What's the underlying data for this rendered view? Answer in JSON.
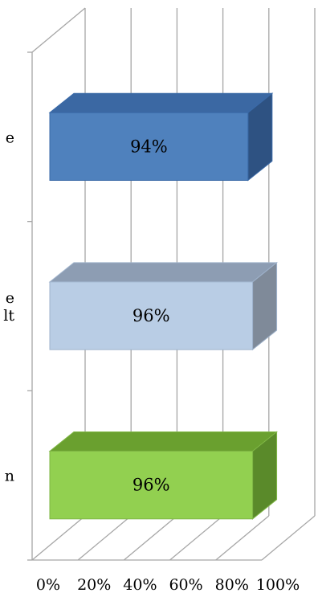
{
  "chart_data": {
    "type": "bar",
    "orientation": "horizontal",
    "style": "3d",
    "title": "",
    "xlabel": "",
    "ylabel": "",
    "xlim": [
      0,
      100
    ],
    "x_ticks": [
      "0%",
      "20%",
      "40%",
      "60%",
      "80%",
      "100%"
    ],
    "categories": [
      {
        "label_lines": [
          "e"
        ]
      },
      {
        "label_lines": [
          "e",
          "lt"
        ]
      },
      {
        "label_lines": [
          "n"
        ]
      }
    ],
    "values": [
      94,
      96,
      96
    ],
    "value_labels": [
      "94%",
      "96%",
      "96%"
    ],
    "bar_colors": [
      {
        "front": "#4f81bd",
        "top": "#3b68a3",
        "side": "#2e5282",
        "border": "#3a6aa8"
      },
      {
        "front": "#b9cde5",
        "top": "#8d9db3",
        "side": "#7f8a99",
        "border": "#9fb3cc"
      },
      {
        "front": "#92d050",
        "top": "#6aa02f",
        "side": "#5a8a2a",
        "border": "#7fb645"
      }
    ],
    "gridlines": true,
    "legend": "none"
  }
}
